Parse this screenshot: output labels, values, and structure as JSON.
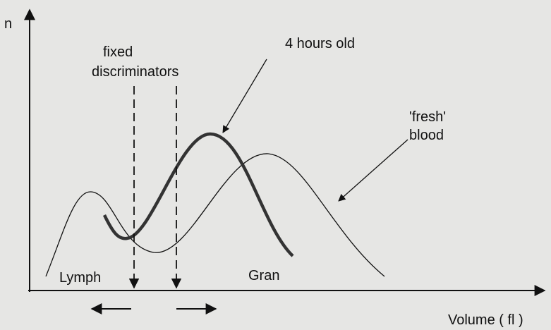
{
  "axis": {
    "y_label": "n",
    "x_label": "Volume ( fl )"
  },
  "annotations": {
    "discriminators": [
      "fixed",
      "discriminators"
    ],
    "old": "4 hours old",
    "fresh": [
      "'fresh'",
      "blood"
    ]
  },
  "regions": {
    "lymph": "Lymph",
    "gran": "Gran"
  }
}
